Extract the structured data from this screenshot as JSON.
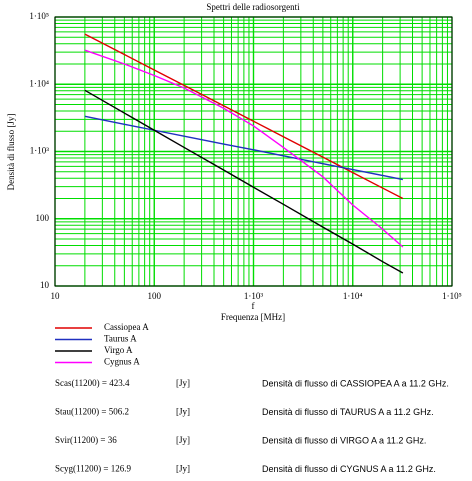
{
  "chart_data": {
    "type": "line",
    "title": "Spettri delle radiosorgenti",
    "x_label": "Frequenza [MHz]",
    "x_var": "f",
    "y_label": "Densità di flusso [Jy]",
    "log_x": true,
    "log_y": true,
    "grid": true,
    "minor_grid": true,
    "grid_color": "#00dd00",
    "x": [
      20,
      50,
      100,
      200,
      500,
      1000,
      2000,
      5000,
      10000,
      20000,
      32000
    ],
    "series": [
      {
        "name": "Cassiopea A",
        "color": "#e00000",
        "values": [
          55700,
          27700,
          16300,
          9640,
          4790,
          2820,
          1660,
          824,
          486,
          286,
          200
        ]
      },
      {
        "name": "Taurus A",
        "color": "#2030c0",
        "values": [
          3330,
          2540,
          2070,
          1690,
          1290,
          1060,
          863,
          659,
          538,
          440,
          383
        ]
      },
      {
        "name": "Virgo A",
        "color": "#000000",
        "values": [
          8130,
          3730,
          2070,
          1150,
          530,
          294,
          164,
          75,
          42,
          23,
          15.6
        ]
      },
      {
        "name": "Cygnus A",
        "color": "#ff00ff",
        "values": [
          32100,
          20000,
          13500,
          8800,
          4400,
          2400,
          1150,
          420,
          160,
          70,
          38
        ]
      }
    ],
    "xlim": [
      10,
      100000
    ],
    "ylim": [
      10,
      100000
    ],
    "xticks": [
      10,
      100,
      {
        "value": 1000,
        "label": "1·10³"
      },
      {
        "value": 10000,
        "label": "1·10⁴"
      },
      {
        "value": 100000,
        "label": "1·10⁵"
      }
    ],
    "yticks": [
      10,
      100,
      {
        "value": 1000,
        "label": "1·10³"
      },
      {
        "value": 10000,
        "label": "1·10⁴"
      },
      {
        "value": 100000,
        "label": "1·10⁵"
      }
    ]
  },
  "results": [
    {
      "expr": "Scas(11200) = 423.4",
      "unit": "[Jy]",
      "description": "Densità di flusso di CASSIOPEA A a 11.2 GHz."
    },
    {
      "expr": "Stau(11200) = 506.2",
      "unit": "[Jy]",
      "description": "Densità di flusso di TAURUS A a 11.2 GHz."
    },
    {
      "expr": "Svir(11200) = 36",
      "unit": "[Jy]",
      "description": "Densità di flusso di VIRGO A a 11.2 GHz."
    },
    {
      "expr": "Scyg(11200) = 126.9",
      "unit": "[Jy]",
      "description": "Densità di flusso di CYGNUS A a 11.2 GHz."
    }
  ]
}
